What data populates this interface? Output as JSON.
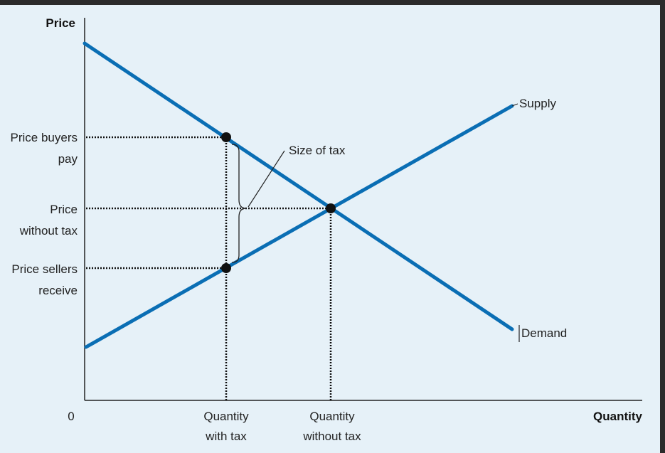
{
  "diagram": {
    "y_axis_title": "Price",
    "x_axis_title": "Quantity",
    "origin_label": "0",
    "curves": {
      "supply_label": "Supply",
      "demand_label": "Demand"
    },
    "y_labels": {
      "price_buyers_pay": [
        "Price buyers",
        "pay"
      ],
      "price_without_tax": [
        "Price",
        "without tax"
      ],
      "price_sellers_receive": [
        "Price sellers",
        "receive"
      ]
    },
    "x_labels": {
      "quantity_with_tax": [
        "Quantity",
        "with tax"
      ],
      "quantity_without_tax": [
        "Quantity",
        "without tax"
      ]
    },
    "annotation": "Size of tax",
    "colors": {
      "curve": "#0a6eb4",
      "background": "#e6f1f8",
      "point": "#111111"
    }
  }
}
